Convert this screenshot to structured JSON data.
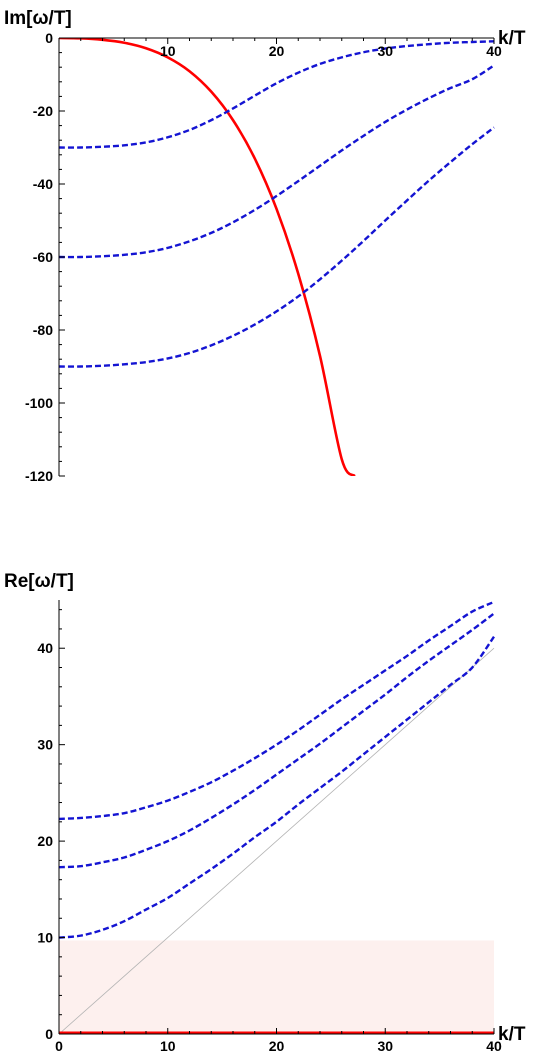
{
  "chart_data": [
    {
      "type": "line",
      "ylabel": "Im[ω/T]",
      "xlabel": "k/T",
      "xlim": [
        0,
        40
      ],
      "ylim": [
        -120,
        0
      ],
      "xticks": [
        "10",
        "20",
        "30",
        "40"
      ],
      "yticks": [
        "0",
        "-20",
        "-40",
        "-60",
        "-80",
        "-100",
        "-120"
      ],
      "grid": false,
      "colors": {
        "red": "#ff0000",
        "blue": "#1414d2"
      },
      "series": [
        {
          "style": "solid",
          "color": "#ff0000",
          "x": [
            0,
            2,
            4,
            6,
            8,
            10,
            12,
            14,
            16,
            18,
            20,
            22,
            24,
            26,
            27.2
          ],
          "y": [
            0,
            -0.1,
            -0.5,
            -1.3,
            -2.8,
            -5.3,
            -9.1,
            -14.7,
            -22.5,
            -33,
            -46.8,
            -64.6,
            -87.1,
            -115.4,
            -120
          ]
        },
        {
          "style": "dashed",
          "color": "#1414d2",
          "x": [
            0,
            2,
            4,
            6,
            8,
            10,
            12,
            14,
            16,
            18,
            20,
            22,
            24,
            26,
            28,
            30,
            32,
            34,
            36,
            38,
            40
          ],
          "y": [
            -30,
            -30,
            -29.8,
            -29.4,
            -28.6,
            -27.2,
            -25.2,
            -22.5,
            -19.3,
            -15.8,
            -12.4,
            -9.5,
            -7.1,
            -5.3,
            -3.9,
            -2.9,
            -2.2,
            -1.7,
            -1.3,
            -1.1,
            -0.9
          ]
        },
        {
          "style": "dashed",
          "color": "#1414d2",
          "x": [
            0,
            2,
            4,
            6,
            8,
            10,
            12,
            14,
            16,
            18,
            20,
            22,
            24,
            26,
            28,
            30,
            32,
            34,
            36,
            38,
            40
          ],
          "y": [
            -60,
            -60,
            -59.8,
            -59.4,
            -58.7,
            -57.5,
            -55.7,
            -53.4,
            -50.5,
            -47.1,
            -43.3,
            -39.2,
            -35,
            -30.8,
            -26.8,
            -23,
            -19.6,
            -16.5,
            -13.7,
            -11.3,
            -7.5
          ]
        },
        {
          "style": "dashed",
          "color": "#1414d2",
          "x": [
            0,
            2,
            4,
            6,
            8,
            10,
            12,
            14,
            16,
            18,
            20,
            22,
            24,
            26,
            28,
            30,
            32,
            34,
            36,
            38,
            40
          ],
          "y": [
            -90,
            -90,
            -89.8,
            -89.4,
            -88.8,
            -87.8,
            -86.3,
            -84.2,
            -81.6,
            -78.5,
            -74.9,
            -70.8,
            -66.1,
            -61,
            -55.6,
            -50,
            -44.5,
            -39.1,
            -34,
            -29.1,
            -24.5
          ]
        }
      ]
    },
    {
      "type": "line",
      "ylabel": "Re[ω/T]",
      "xlabel": "k/T",
      "xlim": [
        0,
        40
      ],
      "ylim": [
        0,
        45
      ],
      "xticks": [
        "0",
        "10",
        "20",
        "30",
        "40"
      ],
      "yticks": [
        "0",
        "10",
        "20",
        "30",
        "40"
      ],
      "grid": false,
      "shaded_band": {
        "y_from": 0,
        "y_to": 9.7,
        "color": "#fdf0ee"
      },
      "colors": {
        "red": "#ff0000",
        "blue": "#1414d2",
        "reference": "#b4b4b4"
      },
      "series": [
        {
          "style": "thin",
          "color": "#b4b4b4",
          "x": [
            0,
            40
          ],
          "y": [
            0,
            40
          ]
        },
        {
          "style": "solid",
          "color": "#ff0000",
          "x": [
            0,
            40
          ],
          "y": [
            0,
            0
          ]
        },
        {
          "style": "dashed",
          "color": "#1414d2",
          "x": [
            0,
            2,
            4,
            6,
            8,
            10,
            12,
            14,
            16,
            18,
            20,
            22,
            24,
            26,
            28,
            30,
            32,
            34,
            36,
            38,
            40
          ],
          "y": [
            10,
            10.2,
            10.8,
            11.7,
            12.9,
            14.1,
            15.6,
            17.1,
            18.7,
            20.4,
            22,
            23.8,
            25.5,
            27.2,
            29,
            30.8,
            32.6,
            34.4,
            36.2,
            38,
            41.2
          ]
        },
        {
          "style": "dashed",
          "color": "#1414d2",
          "x": [
            0,
            2,
            4,
            6,
            8,
            10,
            12,
            14,
            16,
            18,
            20,
            22,
            24,
            26,
            28,
            30,
            32,
            34,
            36,
            38,
            40
          ],
          "y": [
            17.3,
            17.4,
            17.8,
            18.3,
            19.1,
            20,
            21.1,
            22.4,
            23.8,
            25.3,
            26.9,
            28.5,
            30.1,
            31.8,
            33.5,
            35.2,
            37,
            38.7,
            40.3,
            41.9,
            43.6
          ]
        },
        {
          "style": "dashed",
          "color": "#1414d2",
          "x": [
            0,
            2,
            4,
            6,
            8,
            10,
            12,
            14,
            16,
            18,
            20,
            22,
            24,
            26,
            28,
            30,
            32,
            34,
            36,
            38,
            40
          ],
          "y": [
            22.3,
            22.4,
            22.6,
            22.9,
            23.5,
            24.2,
            25.1,
            26.1,
            27.3,
            28.6,
            30,
            31.5,
            33.1,
            34.7,
            36.2,
            37.7,
            39.2,
            40.8,
            42.3,
            43.8,
            44.8
          ]
        }
      ]
    }
  ]
}
